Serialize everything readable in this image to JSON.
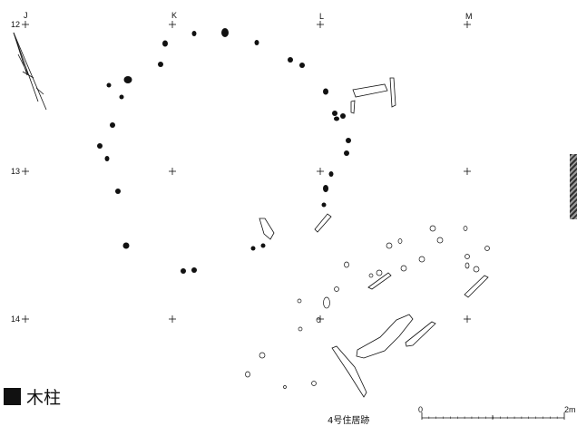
{
  "grid": {
    "columns": [
      "J",
      "K",
      "L",
      "M"
    ],
    "rows": [
      "12",
      "13",
      "14"
    ]
  },
  "legend": {
    "label": "木柱"
  },
  "caption": "4号住居跡",
  "scale": {
    "start": "0",
    "end": "2m"
  },
  "colors": {
    "ink": "#111111",
    "paper": "#ffffff"
  },
  "icons": {
    "north": "north-arrow-icon",
    "post": "filled-post-hole-icon"
  }
}
